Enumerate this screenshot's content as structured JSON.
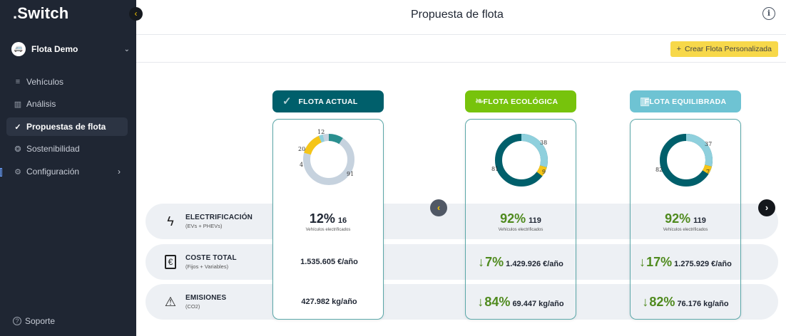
{
  "sidebar": {
    "logo": ".Switch",
    "fleet_name": "Flota Demo",
    "fleet_avatar": "🚐",
    "items": [
      {
        "label": "Vehículos",
        "icon": "≡"
      },
      {
        "label": "Análisis",
        "icon": "▥"
      },
      {
        "label": "Propuestas de flota",
        "icon": "✓"
      },
      {
        "label": "Sostenibilidad",
        "icon": "❂"
      },
      {
        "label": "Configuración",
        "icon": "⚙"
      }
    ],
    "support_label": "Soporte",
    "support_icon": "?"
  },
  "header": {
    "title": "Propuesta de flota",
    "info_icon": "i"
  },
  "toolbar": {
    "create_label": "Crear Flota Personalizada",
    "create_icon": "+"
  },
  "metrics": [
    {
      "title": "ELECTRIFICACIÓN",
      "subtitle": "(EVs + PHEVs)",
      "icon": "ϟ"
    },
    {
      "title": "COSTE TOTAL",
      "subtitle": "(Fijos + Variables)",
      "icon": "€"
    },
    {
      "title": "EMISIONES",
      "subtitle": "(CO2)",
      "icon": "⚠"
    }
  ],
  "colors": {
    "actual": "#005f6b",
    "ecologica": "#77c30c",
    "equilibrada": "#6ec3d3",
    "donut_dark": "#005f6b",
    "donut_light": "#8fd0dd",
    "donut_yellow": "#f5c518",
    "donut_grey": "#c6d2de",
    "donut_teal_small": "#2a8f8f"
  },
  "cards": [
    {
      "name": "FLOTA ACTUAL",
      "icon": "✓",
      "donut_labels": [
        "12",
        "20",
        "4",
        "91"
      ],
      "electrification_pct": "12%",
      "electrification_count": "16",
      "electrification_caption": "Vehículos electrificados",
      "cost_arrow": "",
      "cost_pct": "",
      "cost_value": "1.535.605 €/año",
      "emissions_arrow": "",
      "emissions_pct": "",
      "emissions_value": "427.982 kg/año"
    },
    {
      "name": "FLOTA ECOLÓGICA",
      "icon": "❧",
      "donut_labels": [
        "38",
        "9",
        "81"
      ],
      "electrification_pct": "92%",
      "electrification_count": "119",
      "electrification_caption": "Vehículos electrificados",
      "cost_arrow": "↓",
      "cost_pct": "7%",
      "cost_value": "1.429.926 €/año",
      "emissions_arrow": "↓",
      "emissions_pct": "84%",
      "emissions_value": "69.447 kg/año"
    },
    {
      "name": "FLOTA EQUILIBRADA",
      "icon": "▥",
      "donut_labels": [
        "37",
        "7",
        "82"
      ],
      "electrification_pct": "92%",
      "electrification_count": "119",
      "electrification_caption": "Vehículos electrificados",
      "cost_arrow": "↓",
      "cost_pct": "17%",
      "cost_value": "1.275.929 €/año",
      "emissions_arrow": "↓",
      "emissions_pct": "82%",
      "emissions_value": "76.176 kg/año"
    }
  ],
  "carousel": {
    "prev_icon": "‹",
    "next_icon": "›"
  }
}
